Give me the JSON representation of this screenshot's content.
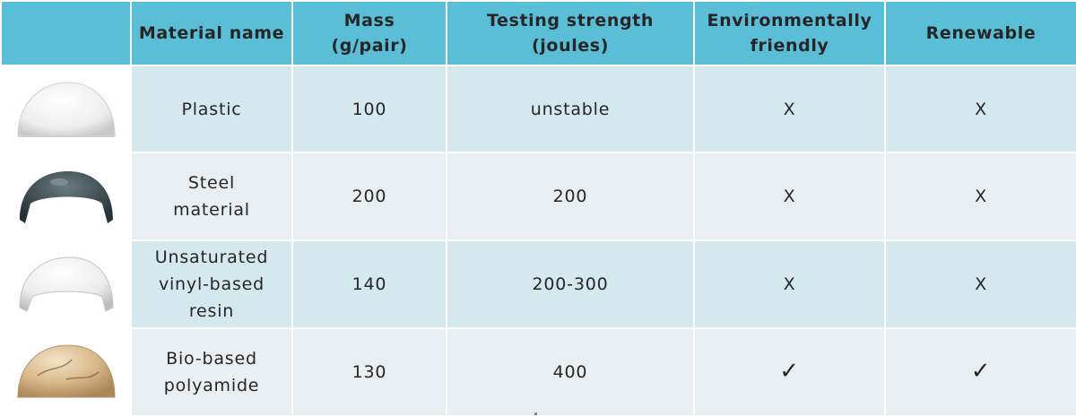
{
  "table": {
    "headers": {
      "material_name": "Material name",
      "mass_line1": "Mass",
      "mass_line2": "(g/pair)",
      "strength_line1": "Testing strength",
      "strength_line2": "(joules)",
      "eco_line1": "Environmentally",
      "eco_line2": "friendly",
      "renewable": "Renewable"
    },
    "rows": [
      {
        "image_icon": "white-plastic-toe-cap-icon",
        "name_lines": [
          "Plastic"
        ],
        "mass": "100",
        "strength": "unstable",
        "eco": "X",
        "renewable": "X"
      },
      {
        "image_icon": "steel-toe-cap-icon",
        "name_lines": [
          "Steel",
          "material"
        ],
        "mass": "200",
        "strength": "200",
        "eco": "X",
        "renewable": "X"
      },
      {
        "image_icon": "resin-toe-cap-icon",
        "name_lines": [
          "Unsaturated",
          "vinyl-based",
          "resin"
        ],
        "mass": "140",
        "strength": "200-300",
        "eco": "X",
        "renewable": "X"
      },
      {
        "image_icon": "polyamide-toe-cap-icon",
        "name_lines": [
          "Bio-based",
          "polyamide"
        ],
        "mass": "130",
        "strength": "400",
        "eco": "✓",
        "renewable": "✓"
      }
    ]
  },
  "colors": {
    "header_bg": "#5abfd6",
    "row_odd_bg": "#d4e8ed",
    "row_even_bg": "#e8eff2",
    "text": "#262626"
  }
}
